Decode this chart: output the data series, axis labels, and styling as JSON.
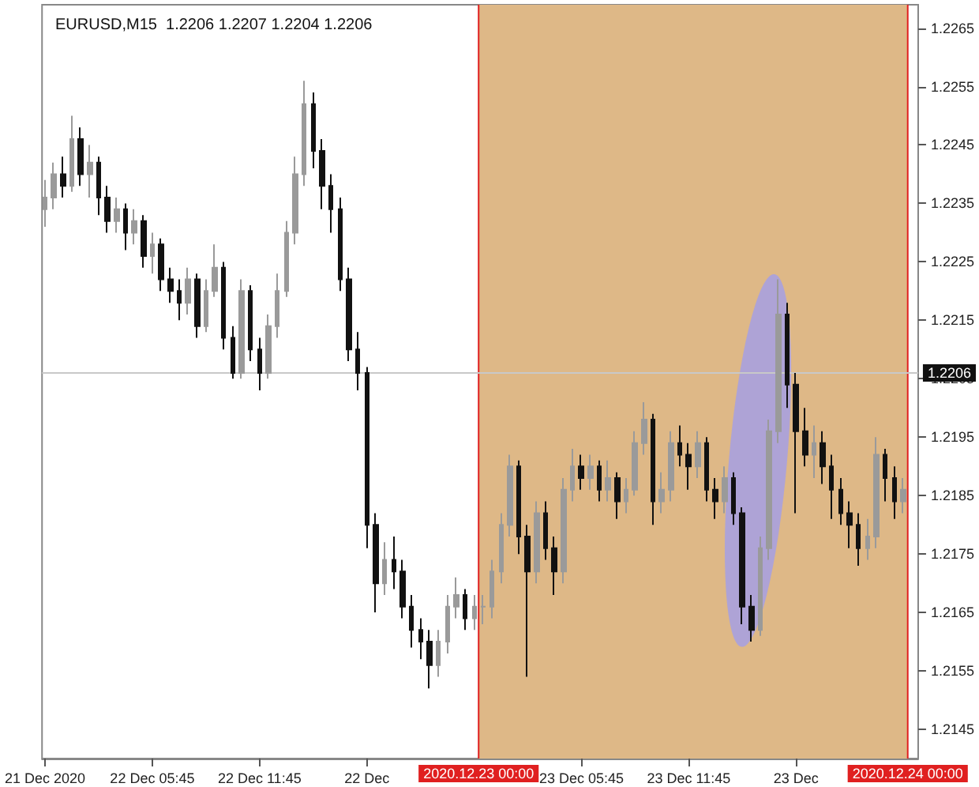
{
  "chart_data": {
    "type": "candlestick",
    "title": "EURUSD,M15  1.2206 1.2207 1.2204 1.2206",
    "x": [
      "2020-12-21T23:45",
      "2020-12-22T00:15",
      "2020-12-22T00:45",
      "2020-12-22T01:15",
      "2020-12-22T01:45",
      "2020-12-22T02:15",
      "2020-12-22T02:45",
      "2020-12-22T03:15",
      "2020-12-22T03:45",
      "2020-12-22T04:15",
      "2020-12-22T04:45",
      "2020-12-22T05:15",
      "2020-12-22T05:45",
      "2020-12-22T06:15",
      "2020-12-22T06:45",
      "2020-12-22T07:15",
      "2020-12-22T07:45",
      "2020-12-22T08:15",
      "2020-12-22T08:45",
      "2020-12-22T09:15",
      "2020-12-22T09:45",
      "2020-12-22T10:15",
      "2020-12-22T10:45",
      "2020-12-22T11:15",
      "2020-12-22T11:45",
      "2020-12-22T12:15",
      "2020-12-22T12:45",
      "2020-12-22T13:15",
      "2020-12-22T13:45",
      "2020-12-22T14:15",
      "2020-12-22T14:45",
      "2020-12-22T15:15",
      "2020-12-22T15:45",
      "2020-12-22T16:15",
      "2020-12-22T16:45",
      "2020-12-22T17:15",
      "2020-12-22T17:45",
      "2020-12-22T18:15",
      "2020-12-22T18:45",
      "2020-12-22T19:15",
      "2020-12-22T19:45",
      "2020-12-22T20:15",
      "2020-12-22T20:45",
      "2020-12-22T21:15",
      "2020-12-22T21:45",
      "2020-12-22T22:15",
      "2020-12-22T22:45",
      "2020-12-22T23:15",
      "2020-12-22T23:45",
      "2020-12-23T00:15",
      "2020-12-23T00:45",
      "2020-12-23T01:15",
      "2020-12-23T01:45",
      "2020-12-23T02:15",
      "2020-12-23T02:45",
      "2020-12-23T03:15",
      "2020-12-23T03:45",
      "2020-12-23T04:15",
      "2020-12-23T04:45",
      "2020-12-23T05:15",
      "2020-12-23T05:45",
      "2020-12-23T06:15",
      "2020-12-23T06:45",
      "2020-12-23T07:15",
      "2020-12-23T07:45",
      "2020-12-23T08:15",
      "2020-12-23T08:45",
      "2020-12-23T09:15",
      "2020-12-23T09:45",
      "2020-12-23T10:15",
      "2020-12-23T10:45",
      "2020-12-23T11:15",
      "2020-12-23T11:45",
      "2020-12-23T12:15",
      "2020-12-23T12:45",
      "2020-12-23T13:15",
      "2020-12-23T13:45",
      "2020-12-23T14:15",
      "2020-12-23T14:45",
      "2020-12-23T15:15",
      "2020-12-23T15:45",
      "2020-12-23T16:15",
      "2020-12-23T16:45",
      "2020-12-23T17:15",
      "2020-12-23T17:45",
      "2020-12-23T18:15",
      "2020-12-23T18:45",
      "2020-12-23T19:15",
      "2020-12-23T19:45",
      "2020-12-23T20:15",
      "2020-12-23T20:45",
      "2020-12-23T21:15",
      "2020-12-23T21:45",
      "2020-12-23T22:15",
      "2020-12-23T22:45",
      "2020-12-23T23:15",
      "2020-12-23T23:45"
    ],
    "ohlc": [
      [
        1.2234,
        1.2239,
        1.2231,
        1.2236
      ],
      [
        1.2236,
        1.2242,
        1.2234,
        1.224
      ],
      [
        1.224,
        1.2243,
        1.2236,
        1.2238
      ],
      [
        1.2238,
        1.225,
        1.2237,
        1.2246
      ],
      [
        1.2246,
        1.2248,
        1.2238,
        1.224
      ],
      [
        1.224,
        1.2245,
        1.2236,
        1.2242
      ],
      [
        1.2242,
        1.2243,
        1.2233,
        1.2236
      ],
      [
        1.2236,
        1.2238,
        1.223,
        1.2232
      ],
      [
        1.2232,
        1.2236,
        1.223,
        1.2234
      ],
      [
        1.2234,
        1.2235,
        1.2227,
        1.223
      ],
      [
        1.223,
        1.2234,
        1.2228,
        1.2232
      ],
      [
        1.2232,
        1.2233,
        1.2224,
        1.2226
      ],
      [
        1.2226,
        1.223,
        1.2223,
        1.2228
      ],
      [
        1.2228,
        1.2229,
        1.222,
        1.2222
      ],
      [
        1.2222,
        1.2224,
        1.2218,
        1.222
      ],
      [
        1.222,
        1.2222,
        1.2215,
        1.2218
      ],
      [
        1.2218,
        1.2224,
        1.2216,
        1.2222
      ],
      [
        1.2222,
        1.2223,
        1.2212,
        1.2214
      ],
      [
        1.2214,
        1.2222,
        1.2213,
        1.222
      ],
      [
        1.222,
        1.2228,
        1.2219,
        1.2224
      ],
      [
        1.2224,
        1.2225,
        1.221,
        1.2212
      ],
      [
        1.2212,
        1.2214,
        1.2205,
        1.2206
      ],
      [
        1.2206,
        1.2222,
        1.2205,
        1.222
      ],
      [
        1.222,
        1.2221,
        1.2208,
        1.221
      ],
      [
        1.221,
        1.2212,
        1.2203,
        1.2206
      ],
      [
        1.2206,
        1.2216,
        1.2205,
        1.2214
      ],
      [
        1.2214,
        1.2223,
        1.2212,
        1.222
      ],
      [
        1.222,
        1.2232,
        1.2219,
        1.223
      ],
      [
        1.223,
        1.2243,
        1.2228,
        1.224
      ],
      [
        1.224,
        1.2256,
        1.2238,
        1.2252
      ],
      [
        1.2252,
        1.2254,
        1.2241,
        1.2244
      ],
      [
        1.2244,
        1.2246,
        1.2234,
        1.2238
      ],
      [
        1.2238,
        1.224,
        1.223,
        1.2234
      ],
      [
        1.2234,
        1.2236,
        1.222,
        1.2222
      ],
      [
        1.2222,
        1.2224,
        1.2208,
        1.221
      ],
      [
        1.221,
        1.2213,
        1.2203,
        1.2206
      ],
      [
        1.2206,
        1.2207,
        1.2176,
        1.218
      ],
      [
        1.218,
        1.2182,
        1.2165,
        1.217
      ],
      [
        1.217,
        1.2177,
        1.2168,
        1.2174
      ],
      [
        1.2174,
        1.2178,
        1.2169,
        1.2172
      ],
      [
        1.2172,
        1.2174,
        1.2164,
        1.2166
      ],
      [
        1.2166,
        1.2168,
        1.2159,
        1.2162
      ],
      [
        1.2162,
        1.2164,
        1.2157,
        1.216
      ],
      [
        1.216,
        1.2162,
        1.2152,
        1.2156
      ],
      [
        1.2156,
        1.2162,
        1.2154,
        1.216
      ],
      [
        1.216,
        1.2168,
        1.2158,
        1.2166
      ],
      [
        1.2166,
        1.2171,
        1.2164,
        1.2168
      ],
      [
        1.2168,
        1.2169,
        1.2162,
        1.2164
      ],
      [
        1.2164,
        1.2168,
        1.2162,
        1.2166
      ],
      [
        1.2166,
        1.2168,
        1.2163,
        1.2166
      ],
      [
        1.2166,
        1.2174,
        1.2164,
        1.2172
      ],
      [
        1.2172,
        1.2182,
        1.217,
        1.218
      ],
      [
        1.218,
        1.2192,
        1.2178,
        1.219
      ],
      [
        1.219,
        1.2191,
        1.2175,
        1.2178
      ],
      [
        1.2178,
        1.218,
        1.2154,
        1.2172
      ],
      [
        1.2172,
        1.2184,
        1.217,
        1.2182
      ],
      [
        1.2182,
        1.2184,
        1.2174,
        1.2176
      ],
      [
        1.2176,
        1.2178,
        1.2168,
        1.2172
      ],
      [
        1.2172,
        1.2188,
        1.217,
        1.2186
      ],
      [
        1.2186,
        1.2193,
        1.2184,
        1.219
      ],
      [
        1.219,
        1.2192,
        1.2186,
        1.2188
      ],
      [
        1.2188,
        1.2192,
        1.2186,
        1.219
      ],
      [
        1.219,
        1.2191,
        1.2184,
        1.2186
      ],
      [
        1.2186,
        1.2191,
        1.2184,
        1.2188
      ],
      [
        1.2188,
        1.2189,
        1.2181,
        1.2184
      ],
      [
        1.2184,
        1.2188,
        1.2182,
        1.2186
      ],
      [
        1.2186,
        1.2196,
        1.2185,
        1.2194
      ],
      [
        1.2194,
        1.2201,
        1.2192,
        1.2198
      ],
      [
        1.2198,
        1.2199,
        1.218,
        1.2184
      ],
      [
        1.2184,
        1.2189,
        1.2182,
        1.2186
      ],
      [
        1.2186,
        1.2196,
        1.2184,
        1.2194
      ],
      [
        1.2194,
        1.2197,
        1.219,
        1.2192
      ],
      [
        1.2192,
        1.2194,
        1.2186,
        1.219
      ],
      [
        1.219,
        1.2196,
        1.2188,
        1.2194
      ],
      [
        1.2194,
        1.2195,
        1.2184,
        1.2186
      ],
      [
        1.2186,
        1.2188,
        1.2181,
        1.2184
      ],
      [
        1.2184,
        1.219,
        1.2182,
        1.2188
      ],
      [
        1.2188,
        1.2189,
        1.218,
        1.2182
      ],
      [
        1.2182,
        1.2183,
        1.2163,
        1.2166
      ],
      [
        1.2166,
        1.2168,
        1.216,
        1.2162
      ],
      [
        1.2162,
        1.2178,
        1.2161,
        1.2176
      ],
      [
        1.2176,
        1.2198,
        1.2174,
        1.2196
      ],
      [
        1.2196,
        1.2222,
        1.2194,
        1.2216
      ],
      [
        1.2216,
        1.2218,
        1.22,
        1.2204
      ],
      [
        1.2204,
        1.2206,
        1.2182,
        1.2196
      ],
      [
        1.2196,
        1.22,
        1.219,
        1.2192
      ],
      [
        1.2192,
        1.2197,
        1.2188,
        1.2194
      ],
      [
        1.2194,
        1.2196,
        1.2187,
        1.219
      ],
      [
        1.219,
        1.2192,
        1.2181,
        1.2186
      ],
      [
        1.2186,
        1.2188,
        1.218,
        1.2182
      ],
      [
        1.2182,
        1.2184,
        1.2176,
        1.218
      ],
      [
        1.218,
        1.2182,
        1.2173,
        1.2176
      ],
      [
        1.2176,
        1.2181,
        1.2174,
        1.2178
      ],
      [
        1.2178,
        1.2195,
        1.2176,
        1.2192
      ],
      [
        1.2192,
        1.2193,
        1.2184,
        1.2188
      ],
      [
        1.2188,
        1.219,
        1.2181,
        1.2184
      ],
      [
        1.2184,
        1.2188,
        1.2182,
        1.2186
      ]
    ],
    "colors": [
      "#9a9a9a",
      "#9a9a9a",
      "#111111",
      "#9a9a9a",
      "#111111",
      "#9a9a9a",
      "#111111",
      "#111111",
      "#9a9a9a",
      "#111111",
      "#9a9a9a",
      "#111111",
      "#9a9a9a",
      "#111111",
      "#111111",
      "#111111",
      "#9a9a9a",
      "#111111",
      "#9a9a9a",
      "#9a9a9a",
      "#111111",
      "#111111",
      "#9a9a9a",
      "#111111",
      "#111111",
      "#9a9a9a",
      "#9a9a9a",
      "#9a9a9a",
      "#9a9a9a",
      "#9a9a9a",
      "#111111",
      "#111111",
      "#111111",
      "#111111",
      "#111111",
      "#111111",
      "#111111",
      "#111111",
      "#9a9a9a",
      "#111111",
      "#111111",
      "#111111",
      "#111111",
      "#111111",
      "#9a9a9a",
      "#9a9a9a",
      "#9a9a9a",
      "#111111",
      "#9a9a9a",
      "#9a9a9a",
      "#9a9a9a",
      "#9a9a9a",
      "#9a9a9a",
      "#111111",
      "#111111",
      "#9a9a9a",
      "#111111",
      "#111111",
      "#9a9a9a",
      "#9a9a9a",
      "#111111",
      "#9a9a9a",
      "#111111",
      "#9a9a9a",
      "#111111",
      "#9a9a9a",
      "#9a9a9a",
      "#9a9a9a",
      "#111111",
      "#9a9a9a",
      "#9a9a9a",
      "#111111",
      "#111111",
      "#9a9a9a",
      "#111111",
      "#111111",
      "#9a9a9a",
      "#111111",
      "#111111",
      "#111111",
      "#9a9a9a",
      "#9a9a9a",
      "#9a9a9a",
      "#111111",
      "#111111",
      "#111111",
      "#9a9a9a",
      "#111111",
      "#111111",
      "#111111",
      "#111111",
      "#111111",
      "#9a9a9a",
      "#9a9a9a",
      "#111111",
      "#111111",
      "#9a9a9a"
    ],
    "xlim": [
      "2020-12-21T23:35",
      "2020-12-24T00:35"
    ],
    "xticks": [
      {
        "value": "2020-12-21T23:45",
        "label": "21 Dec 2020"
      },
      {
        "value": "2020-12-22T05:45",
        "label": "22 Dec 05:45"
      },
      {
        "value": "2020-12-22T11:45",
        "label": "22 Dec 11:45"
      },
      {
        "value": "2020-12-22T17:45",
        "label": "22 Dec"
      },
      {
        "value": "2020-12-23T05:45",
        "label": "23 Dec 05:45"
      },
      {
        "value": "2020-12-23T11:45",
        "label": "23 Dec 11:45"
      },
      {
        "value": "2020-12-23T17:45",
        "label": "23 Dec"
      }
    ],
    "ylim": [
      1.214,
      1.2269
    ],
    "yticks": [
      1.2145,
      1.2155,
      1.2165,
      1.2175,
      1.2185,
      1.2195,
      1.2205,
      1.2215,
      1.2225,
      1.2235,
      1.2245,
      1.2255,
      1.2265
    ],
    "ref_lines": [
      {
        "axis": "x",
        "value": "2020-12-23T00:00",
        "label": "2020.12.23 00:00",
        "color": "#e02020"
      },
      {
        "axis": "x",
        "value": "2020-12-24T00:00",
        "label": "2020.12.24 00:00",
        "color": "#e02020"
      },
      {
        "axis": "y",
        "value": 1.2206,
        "label": "1.2206",
        "color": "#c8c8c8"
      }
    ],
    "bands": [
      {
        "axis": "x",
        "from": "2020-12-23T00:00",
        "to": "2020-12-24T00:00",
        "color": "#deb887"
      }
    ],
    "grid": false
  }
}
